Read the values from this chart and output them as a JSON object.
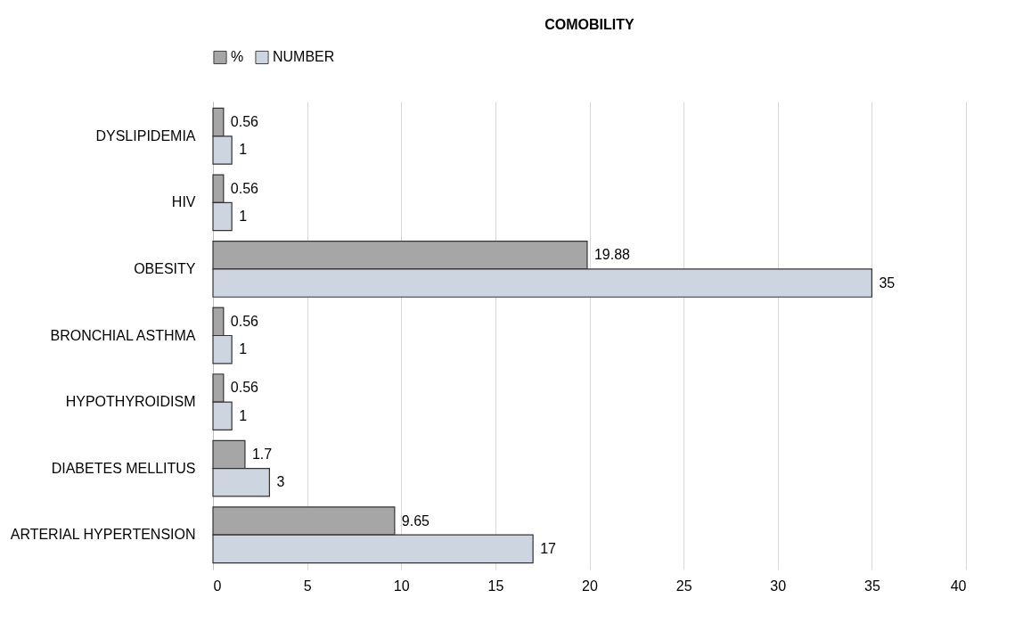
{
  "chart_data": {
    "type": "bar",
    "orientation": "horizontal",
    "title": "COMOBILITY",
    "categories": [
      "DYSLIPIDEMIA",
      "HIV",
      "OBESITY",
      "BRONCHIAL ASTHMA",
      "HYPOTHYROIDISM",
      "DIABETES MELLITUS",
      "ARTERIAL HYPERTENSION"
    ],
    "series": [
      {
        "name": "%",
        "color": "#a6a6a6",
        "values": [
          0.56,
          0.56,
          19.88,
          0.56,
          0.56,
          1.7,
          9.65
        ]
      },
      {
        "name": "NUMBER",
        "color": "#cdd5e0",
        "values": [
          1,
          1,
          35,
          1,
          1,
          3,
          17
        ]
      }
    ],
    "xlim": [
      0,
      40
    ],
    "xticks": [
      0,
      5,
      10,
      15,
      20,
      25,
      30,
      35,
      40
    ],
    "grid": "x",
    "legend": "top",
    "data_labels": true
  }
}
